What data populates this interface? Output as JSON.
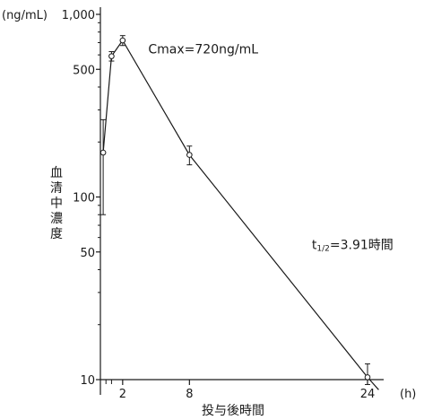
{
  "chart_data": {
    "type": "line",
    "x_scale": "linear",
    "y_scale": "log",
    "xlim": [
      0,
      26
    ],
    "ylim": [
      10,
      1000
    ],
    "y_unit_label": "(ng/mL)",
    "x_unit_label": "(h)",
    "xlabel": "投与後時間",
    "ylabel_chars": [
      "血",
      "清",
      "中",
      "濃",
      "度"
    ],
    "y_ticks": [
      {
        "value": 10,
        "label": "10"
      },
      {
        "value": 50,
        "label": "50"
      },
      {
        "value": 100,
        "label": "100"
      },
      {
        "value": 500,
        "label": "500"
      },
      {
        "value": 1000,
        "label": "1,000"
      }
    ],
    "y_minor_ticks": [
      20,
      30,
      40,
      60,
      70,
      80,
      90,
      200,
      300,
      400,
      600,
      700,
      800,
      900
    ],
    "x_ticks": [
      {
        "value": 2,
        "label": "2"
      },
      {
        "value": 8,
        "label": "8"
      },
      {
        "value": 24,
        "label": "24"
      }
    ],
    "x_minor_ticks": [
      0.5,
      1
    ],
    "points": [
      {
        "x": 0.25,
        "y": 175,
        "err_low": 80,
        "err_high": 265
      },
      {
        "x": 1,
        "y": 590,
        "err_low": 555,
        "err_high": 625
      },
      {
        "x": 2,
        "y": 720,
        "err_low": 675,
        "err_high": 765
      },
      {
        "x": 8,
        "y": 170,
        "err_low": 150,
        "err_high": 190
      },
      {
        "x": 24,
        "y": 10.3,
        "err_low": 9.4,
        "err_high": 12.2
      }
    ],
    "line_extend_to": {
      "x": 25,
      "y": 8.8
    },
    "annotations": [
      {
        "text": "Cmax=720ng/mL",
        "x": 4.3,
        "y": 610
      },
      {
        "text": "t1/2=3.91時間",
        "x": 19,
        "y": 52
      }
    ]
  }
}
